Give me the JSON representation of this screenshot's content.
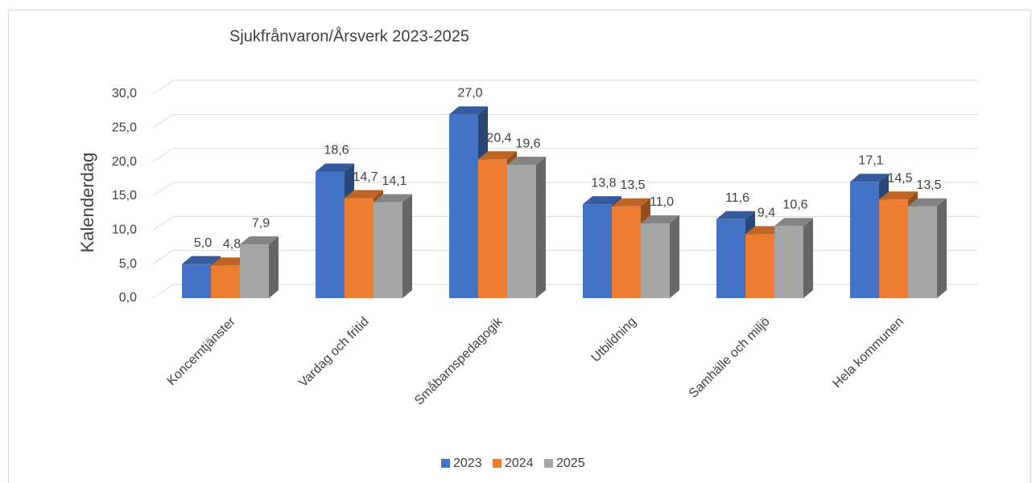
{
  "chart_data": {
    "type": "bar3d",
    "title": "Sjukfrånvaron/Årsverk 2023-2025",
    "y_label": "Kalenderdag",
    "categories": [
      "Koncerntjänster",
      "Vardag och fritid",
      "Småbarnspedagogik",
      "Utbildning",
      "Samhälle och miljö",
      "Hela kommunen"
    ],
    "series": [
      {
        "name": "2023",
        "color": "#4472c4",
        "values": [
          5.0,
          18.6,
          27.0,
          13.8,
          11.6,
          17.1
        ],
        "value_labels": [
          "5,0",
          "18,6",
          "27,0",
          "13,8",
          "11,6",
          "17,1"
        ]
      },
      {
        "name": "2024",
        "color": "#ed7d31",
        "values": [
          4.8,
          14.7,
          20.4,
          13.5,
          9.4,
          14.5
        ],
        "value_labels": [
          "4,8",
          "14,7",
          "20,4",
          "13,5",
          "9,4",
          "14,5"
        ]
      },
      {
        "name": "2025",
        "color": "#a5a5a5",
        "values": [
          7.9,
          14.1,
          19.6,
          11.0,
          10.6,
          13.5
        ],
        "value_labels": [
          "7,9",
          "14,1",
          "19,6",
          "11,0",
          "10,6",
          "13,5"
        ]
      }
    ],
    "ylim": [
      0,
      30
    ],
    "yticks": [
      {
        "value": 0,
        "label": "0,0"
      },
      {
        "value": 5,
        "label": "5,0"
      },
      {
        "value": 10,
        "label": "10,0"
      },
      {
        "value": 15,
        "label": "15,0"
      },
      {
        "value": 20,
        "label": "20,0"
      },
      {
        "value": 25,
        "label": "25,0"
      },
      {
        "value": 30,
        "label": "30,0"
      }
    ],
    "grid": true,
    "legend": "bottom"
  }
}
